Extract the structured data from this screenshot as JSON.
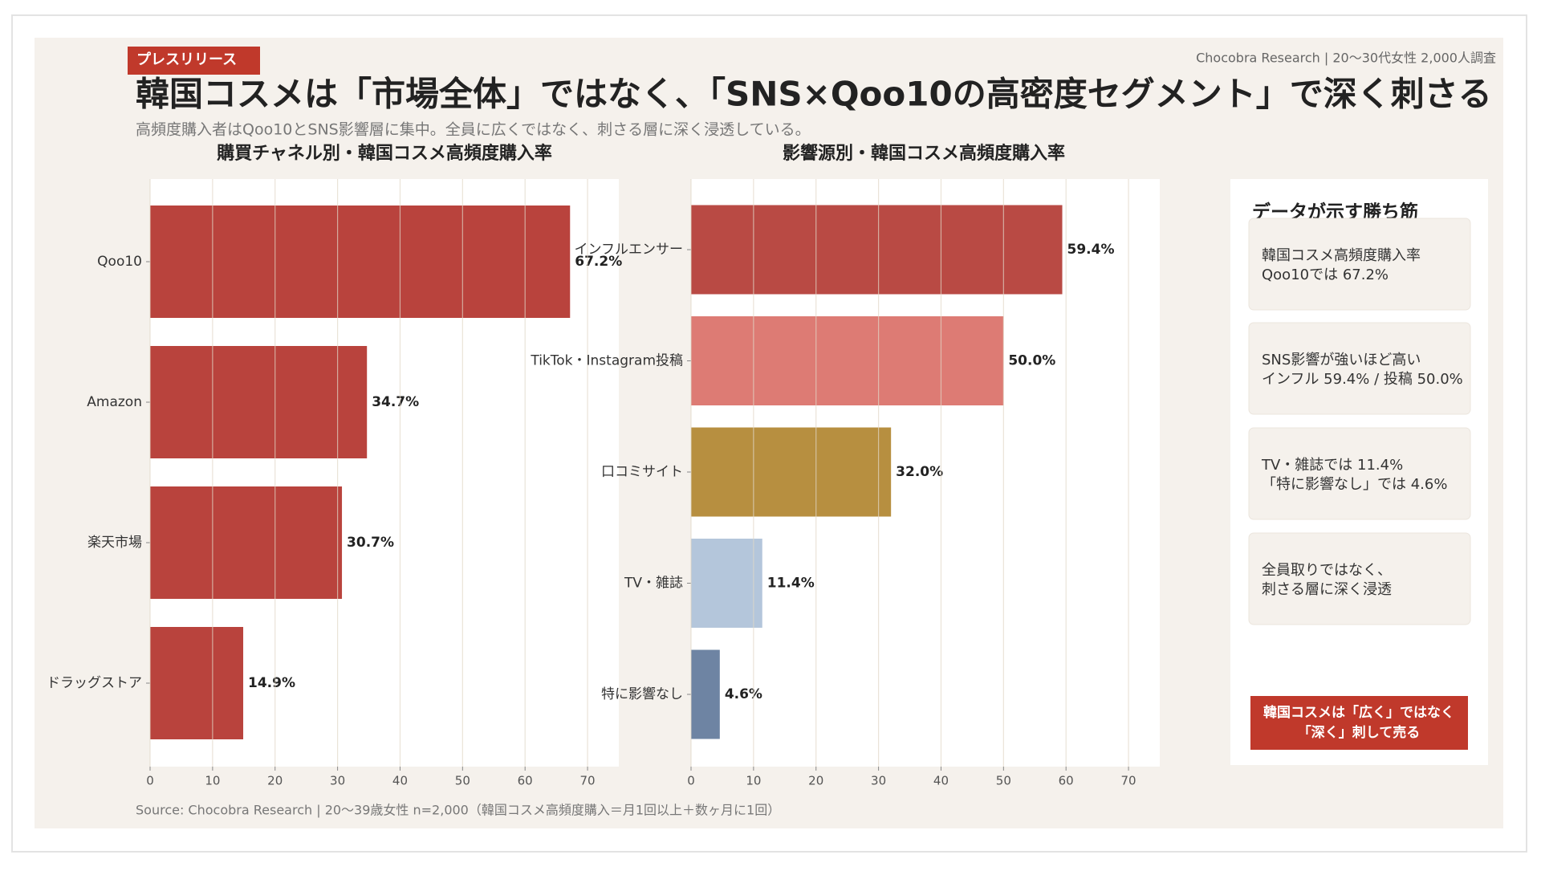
{
  "header": {
    "badge": "プレスリリース",
    "credit": "Chocobra Research | 20〜30代女性 2,000人調査",
    "title": "韓国コスメは「市場全体」ではなく、「SNS×Qoo10の高密度セグメント」で深く刺さる",
    "subtitle": "高頻度購入者はQoo10とSNS影響層に集中。全員に広くではなく、刺さる層に深く浸透している。"
  },
  "chart_data": [
    {
      "type": "bar",
      "orientation": "horizontal",
      "title": "購買チャネル別・韓国コスメ高頻度購入率",
      "categories": [
        "Qoo10",
        "Amazon",
        "楽天市場",
        "ドラッグストア"
      ],
      "values": [
        67.2,
        34.7,
        30.7,
        14.9
      ],
      "value_labels": [
        "67.2%",
        "34.7%",
        "30.7%",
        "14.9%"
      ],
      "color": "#b9433d",
      "xlim": [
        0,
        75
      ],
      "xticks": [
        0,
        10,
        20,
        30,
        40,
        50,
        60,
        70
      ],
      "grid": true
    },
    {
      "type": "bar",
      "orientation": "horizontal",
      "title": "影響源別・韓国コスメ高頻度購入率",
      "categories": [
        "インフルエンサー",
        "TikTok・Instagram投稿",
        "口コミサイト",
        "TV・雑誌",
        "特に影響なし"
      ],
      "values": [
        59.4,
        50.0,
        32.0,
        11.4,
        4.6
      ],
      "value_labels": [
        "59.4%",
        "50.0%",
        "32.0%",
        "11.4%",
        "4.6%"
      ],
      "colors": [
        "#b94a44",
        "#dd7b74",
        "#b78f40",
        "#b4c6db",
        "#6e84a3"
      ],
      "xlim": [
        0,
        75
      ],
      "xticks": [
        0,
        10,
        20,
        30,
        40,
        50,
        60,
        70
      ],
      "grid": true
    }
  ],
  "sidebar": {
    "heading": "データが示す勝ち筋",
    "cards": [
      [
        "韓国コスメ高頻度購入率",
        "Qoo10では 67.2%"
      ],
      [
        "SNS影響が強いほど高い",
        "インフル 59.4% / 投稿 50.0%"
      ],
      [
        "TV・雑誌では 11.4%",
        "「特に影響なし」では 4.6%"
      ],
      [
        "全員取りではなく、",
        "刺さる層に深く浸透"
      ]
    ],
    "cta": [
      "韓国コスメは「広く」ではなく",
      "「深く」刺して売る"
    ]
  },
  "source": "Source: Chocobra Research | 20〜39歳女性 n=2,000（韓国コスメ高頻度購入＝月1回以上＋数ヶ月に1回）"
}
